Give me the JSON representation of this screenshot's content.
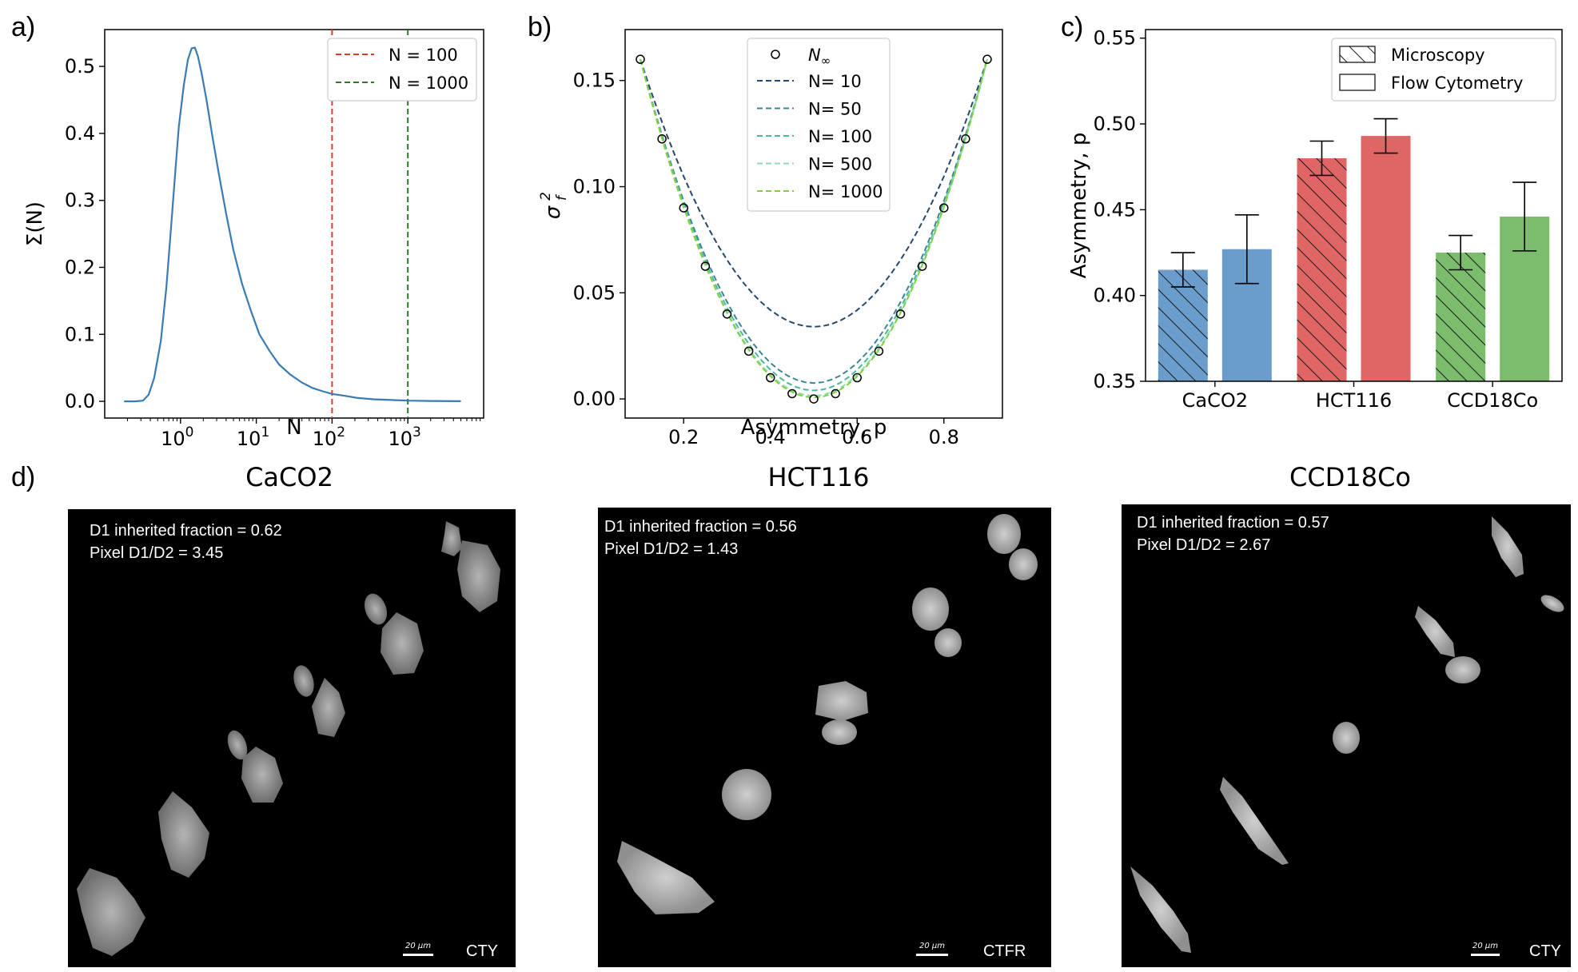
{
  "panel_labels": {
    "a": "a)",
    "b": "b)",
    "c": "c)",
    "d": "d)"
  },
  "chart_data": [
    {
      "id": "a",
      "type": "line",
      "xscale": "log",
      "xlabel": "N",
      "ylabel": "Σ(N)",
      "xlim": [
        0.1,
        10000
      ],
      "ylim": [
        -0.025,
        0.555
      ],
      "xticks": [
        {
          "value": 1,
          "base": "10",
          "exp": "0"
        },
        {
          "value": 10,
          "base": "10",
          "exp": "1"
        },
        {
          "value": 100,
          "base": "10",
          "exp": "2"
        },
        {
          "value": 1000,
          "base": "10",
          "exp": "3"
        }
      ],
      "yticks": [
        "0.0",
        "0.1",
        "0.2",
        "0.3",
        "0.4",
        "0.5"
      ],
      "series": [
        {
          "name": "Σ(N)",
          "color": "#3a7ab5",
          "x": [
            0.18,
            0.25,
            0.32,
            0.38,
            0.45,
            0.55,
            0.65,
            0.75,
            0.85,
            0.95,
            1.1,
            1.25,
            1.4,
            1.55,
            1.7,
            1.9,
            2.2,
            2.6,
            3.2,
            4.0,
            5.0,
            6.5,
            8.5,
            11,
            15,
            20,
            28,
            40,
            55,
            75,
            100,
            150,
            220,
            350,
            600,
            1000,
            2000,
            5000
          ],
          "y": [
            0.0,
            0.0,
            0.001,
            0.01,
            0.035,
            0.09,
            0.17,
            0.26,
            0.34,
            0.41,
            0.47,
            0.51,
            0.527,
            0.528,
            0.515,
            0.49,
            0.45,
            0.4,
            0.34,
            0.28,
            0.225,
            0.175,
            0.135,
            0.1,
            0.075,
            0.055,
            0.04,
            0.028,
            0.02,
            0.015,
            0.011,
            0.008,
            0.005,
            0.003,
            0.002,
            0.001,
            0.0005,
            0.0002
          ]
        }
      ],
      "vlines": [
        {
          "x": 100,
          "label": "N = 100",
          "color": "#e03a2f"
        },
        {
          "x": 1000,
          "label": "N = 1000",
          "color": "#2a7a2a"
        }
      ],
      "legend_position": "top-right"
    },
    {
      "id": "b",
      "type": "line",
      "xlabel": "Asymmetry, p",
      "ylabel_base": "σ",
      "ylabel_sup": "2",
      "ylabel_sub": "f",
      "xlim": [
        0.065,
        0.935
      ],
      "ylim": [
        -0.009,
        0.174
      ],
      "xticks": [
        "0.2",
        "0.4",
        "0.6",
        "0.8"
      ],
      "yticks": [
        "0.00",
        "0.05",
        "0.10",
        "0.15"
      ],
      "scatter": {
        "name": "N",
        "name_sub": "∞",
        "x": [
          0.1,
          0.15,
          0.2,
          0.25,
          0.3,
          0.35,
          0.4,
          0.45,
          0.5,
          0.55,
          0.6,
          0.65,
          0.7,
          0.75,
          0.8,
          0.85,
          0.9
        ],
        "y": [
          0.16,
          0.1225,
          0.09,
          0.0625,
          0.04,
          0.0225,
          0.01,
          0.0025,
          0.0,
          0.0025,
          0.01,
          0.0225,
          0.04,
          0.0625,
          0.09,
          0.1225,
          0.16
        ]
      },
      "curves": [
        {
          "name": "N= 10",
          "offset": 0.034,
          "color": "#26476d"
        },
        {
          "name": "N= 50",
          "offset": 0.0075,
          "color": "#3c8595"
        },
        {
          "name": "N= 100",
          "offset": 0.004,
          "color": "#4ab89a"
        },
        {
          "name": "N= 500",
          "offset": 0.0015,
          "color": "#8fdcb8"
        },
        {
          "name": "N= 1000",
          "offset": 0.0007,
          "color": "#7fd13b"
        }
      ],
      "legend_position": "top-center"
    },
    {
      "id": "c",
      "type": "bar",
      "ylabel": "Asymmetry, p",
      "ylim": [
        0.35,
        0.555
      ],
      "yticks": [
        "0.35",
        "0.40",
        "0.45",
        "0.50",
        "0.55"
      ],
      "categories": [
        "CaCO2",
        "HCT116",
        "CCD18Co"
      ],
      "series": [
        {
          "name": "Microscopy",
          "hatch": true,
          "values": [
            0.415,
            0.48,
            0.425
          ],
          "errors": [
            0.01,
            0.01,
            0.01
          ]
        },
        {
          "name": "Flow Cytometry",
          "hatch": false,
          "values": [
            0.427,
            0.493,
            0.446
          ],
          "errors": [
            0.02,
            0.01,
            0.02
          ]
        }
      ],
      "colors": [
        "#6b9dcc",
        "#e06666",
        "#7cbd6d"
      ],
      "legend_position": "top-right"
    }
  ],
  "micrographs": [
    {
      "title": "CaCO2",
      "line1": "D1 inherited fraction = 0.62",
      "line2": "Pixel D1/D2 = 3.45",
      "scale": "20 µm",
      "dye": "CTY"
    },
    {
      "title": "HCT116",
      "line1": "D1 inherited fraction = 0.56",
      "line2": "Pixel D1/D2 = 1.43",
      "scale": "20 µm",
      "dye": "CTFR"
    },
    {
      "title": "CCD18Co",
      "line1": "D1 inherited fraction = 0.57",
      "line2": "Pixel D1/D2 = 2.67",
      "scale": "20 µm",
      "dye": "CTY"
    }
  ]
}
